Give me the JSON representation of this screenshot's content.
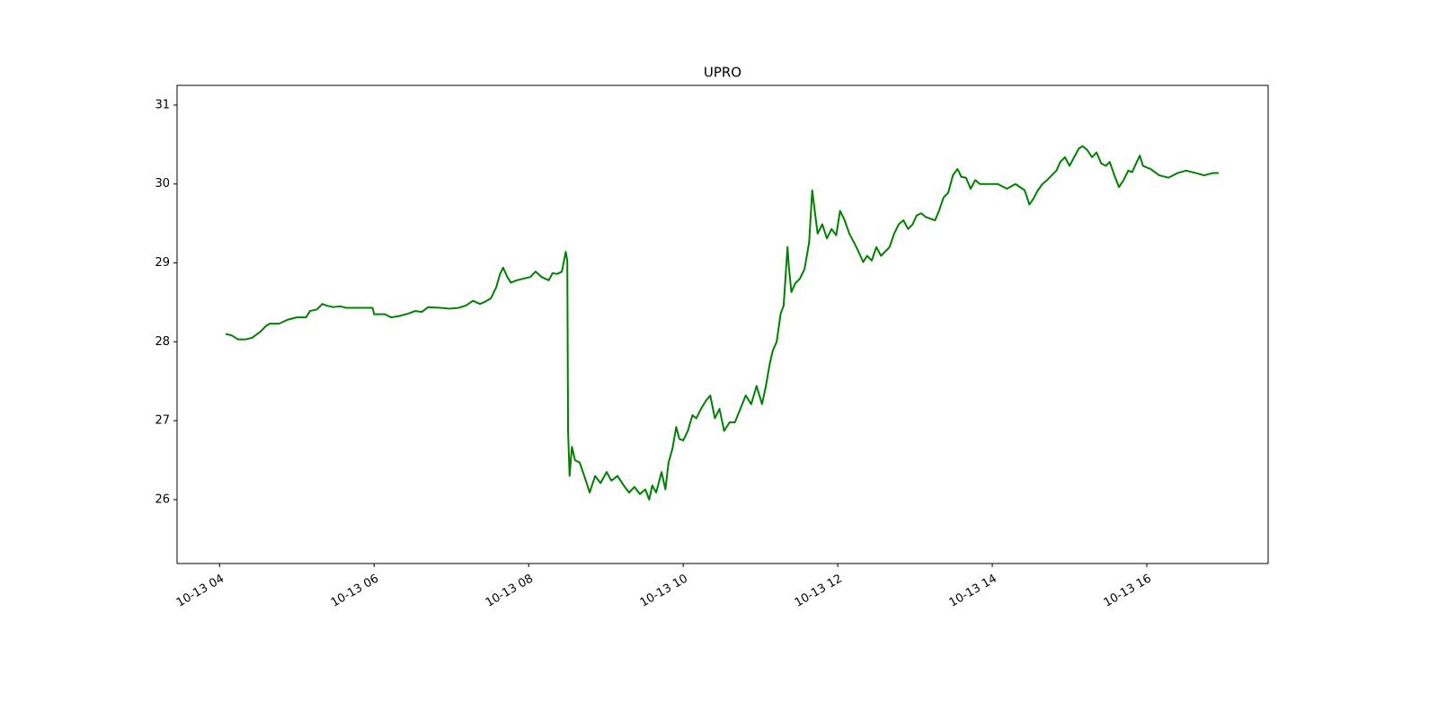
{
  "chart_data": {
    "type": "line",
    "title": "UPRO",
    "x": [
      4.08,
      4.16,
      4.24,
      4.33,
      4.42,
      4.53,
      4.6,
      4.65,
      4.77,
      4.88,
      5.0,
      5.12,
      5.17,
      5.26,
      5.33,
      5.38,
      5.47,
      5.56,
      5.64,
      5.81,
      5.98,
      6.0,
      6.14,
      6.22,
      6.34,
      6.45,
      6.53,
      6.62,
      6.7,
      6.86,
      6.98,
      7.09,
      7.19,
      7.28,
      7.37,
      7.44,
      7.51,
      7.58,
      7.63,
      7.67,
      7.72,
      7.77,
      7.85,
      7.93,
      8.02,
      8.09,
      8.17,
      8.26,
      8.31,
      8.37,
      8.43,
      8.48,
      8.5,
      8.51,
      8.53,
      8.56,
      8.6,
      8.66,
      8.72,
      8.79,
      8.86,
      8.93,
      9.01,
      9.07,
      9.15,
      9.23,
      9.3,
      9.37,
      9.44,
      9.51,
      9.56,
      9.6,
      9.65,
      9.72,
      9.77,
      9.81,
      9.86,
      9.91,
      9.95,
      10.0,
      10.06,
      10.12,
      10.17,
      10.23,
      10.3,
      10.35,
      10.41,
      10.47,
      10.53,
      10.6,
      10.67,
      10.74,
      10.81,
      10.88,
      10.95,
      11.02,
      11.07,
      11.12,
      11.16,
      11.21,
      11.26,
      11.3,
      11.35,
      11.37,
      11.4,
      11.45,
      11.51,
      11.57,
      11.63,
      11.67,
      11.71,
      11.74,
      11.8,
      11.86,
      11.92,
      11.98,
      12.03,
      12.09,
      12.15,
      12.21,
      12.27,
      12.33,
      12.38,
      12.44,
      12.5,
      12.56,
      12.67,
      12.73,
      12.79,
      12.85,
      12.91,
      12.97,
      13.02,
      13.08,
      13.14,
      13.26,
      13.31,
      13.37,
      13.43,
      13.49,
      13.55,
      13.6,
      13.66,
      13.72,
      13.78,
      13.84,
      13.95,
      14.07,
      14.19,
      14.3,
      14.42,
      14.48,
      14.53,
      14.59,
      14.65,
      14.71,
      14.77,
      14.83,
      14.88,
      14.94,
      15.0,
      15.06,
      15.12,
      15.17,
      15.23,
      15.29,
      15.35,
      15.41,
      15.47,
      15.52,
      15.58,
      15.64,
      15.7,
      15.76,
      15.81,
      15.87,
      15.91,
      15.95,
      16.05,
      16.16,
      16.28,
      16.4,
      16.51,
      16.63,
      16.74,
      16.86,
      16.93
    ],
    "series": [
      {
        "color": "#008000",
        "values": [
          28.1,
          28.08,
          28.03,
          28.03,
          28.05,
          28.13,
          28.2,
          28.23,
          28.23,
          28.28,
          28.31,
          28.31,
          28.39,
          28.41,
          28.48,
          28.46,
          28.44,
          28.45,
          28.43,
          28.43,
          28.43,
          28.35,
          28.35,
          28.31,
          28.33,
          28.36,
          28.39,
          28.38,
          28.44,
          28.43,
          28.42,
          28.43,
          28.46,
          28.52,
          28.48,
          28.51,
          28.55,
          28.69,
          28.86,
          28.94,
          28.83,
          28.75,
          28.78,
          28.8,
          28.82,
          28.89,
          28.82,
          28.78,
          28.87,
          28.86,
          28.89,
          29.14,
          29.03,
          26.87,
          26.3,
          26.67,
          26.5,
          26.47,
          26.3,
          26.09,
          26.3,
          26.21,
          26.35,
          26.24,
          26.3,
          26.18,
          26.09,
          26.16,
          26.07,
          26.13,
          26.0,
          26.18,
          26.09,
          26.35,
          26.13,
          26.47,
          26.64,
          26.92,
          26.77,
          26.75,
          26.87,
          27.07,
          27.03,
          27.15,
          27.26,
          27.32,
          27.03,
          27.15,
          26.87,
          26.98,
          26.98,
          27.15,
          27.32,
          27.21,
          27.44,
          27.21,
          27.44,
          27.72,
          27.89,
          28.0,
          28.35,
          28.46,
          29.2,
          28.92,
          28.63,
          28.74,
          28.8,
          28.92,
          29.26,
          29.92,
          29.6,
          29.37,
          29.49,
          29.31,
          29.43,
          29.35,
          29.66,
          29.54,
          29.37,
          29.26,
          29.14,
          29.01,
          29.09,
          29.03,
          29.2,
          29.09,
          29.2,
          29.37,
          29.49,
          29.54,
          29.43,
          29.49,
          29.6,
          29.63,
          29.58,
          29.54,
          29.66,
          29.83,
          29.89,
          30.11,
          30.19,
          30.09,
          30.08,
          29.94,
          30.05,
          30.0,
          30.0,
          30.0,
          29.94,
          30.0,
          29.92,
          29.74,
          29.81,
          29.92,
          30.0,
          30.05,
          30.11,
          30.17,
          30.28,
          30.34,
          30.23,
          30.34,
          30.45,
          30.48,
          30.43,
          30.34,
          30.4,
          30.26,
          30.23,
          30.28,
          30.11,
          29.96,
          30.05,
          30.17,
          30.15,
          30.28,
          30.36,
          30.23,
          30.19,
          30.11,
          30.08,
          30.14,
          30.17,
          30.14,
          30.11,
          30.14,
          30.14
        ]
      }
    ],
    "xlim": [
      3.45,
      17.57
    ],
    "ylim": [
      25.19,
      31.25
    ],
    "xticks": [
      {
        "value": 4,
        "label": "10-13 04"
      },
      {
        "value": 6,
        "label": "10-13 06"
      },
      {
        "value": 8,
        "label": "10-13 08"
      },
      {
        "value": 10,
        "label": "10-13 10"
      },
      {
        "value": 12,
        "label": "10-13 12"
      },
      {
        "value": 14,
        "label": "10-13 14"
      },
      {
        "value": 16,
        "label": "10-13 16"
      }
    ],
    "yticks": [
      26,
      27,
      28,
      29,
      30,
      31
    ]
  }
}
